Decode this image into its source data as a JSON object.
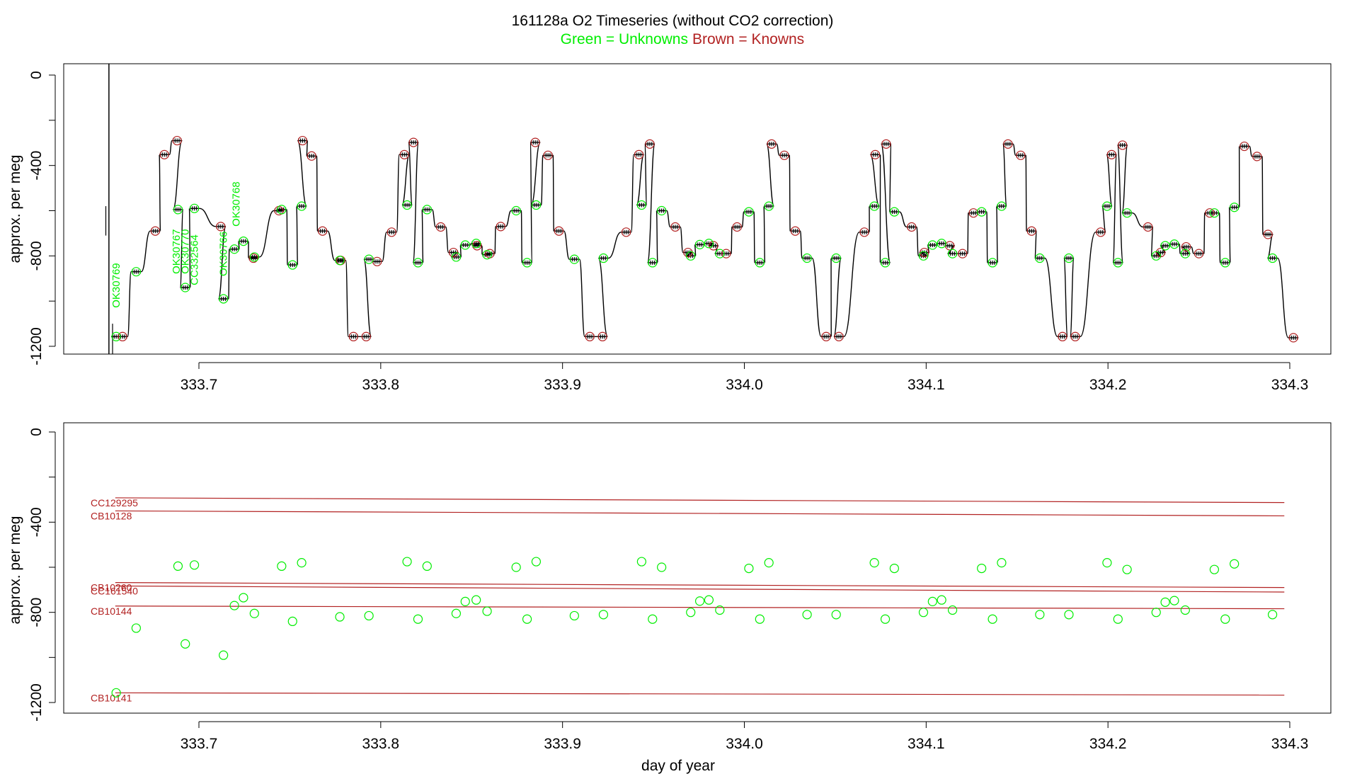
{
  "title": {
    "main": "161128a   O2 Timeseries (without CO2 correction)",
    "green_part": "Green = Unknowns",
    "brown_part": "Brown = Knowns"
  },
  "colors": {
    "green": "#00ee00",
    "brown": "#b22222",
    "ink": "#000000"
  },
  "chart_data": [
    {
      "type": "line",
      "title": "O2 Timeseries (without CO2 correction)",
      "xlabel": "",
      "ylabel": "approx. per meg",
      "xlim": [
        333.64,
        334.3
      ],
      "ylim": [
        -1250,
        50
      ],
      "xticks": [
        333.7,
        333.8,
        333.9,
        334.0,
        334.1,
        334.2,
        334.3
      ],
      "xtick_labels": [
        "333.7",
        "333.8",
        "333.9",
        "334.0",
        "334.1",
        "334.2",
        "334.3"
      ],
      "yticks": [
        0,
        -400,
        -800,
        -1200
      ],
      "ytick_labels": [
        "0",
        "-400",
        "-800",
        "-1200"
      ],
      "spike": {
        "x": 333.6505,
        "from": -1250,
        "to": 50
      },
      "cycle_offsets": [
        0,
        0.129,
        0.259,
        0.389
      ],
      "cycle_x_start": 333.652,
      "template": {
        "steps": [
          {
            "dx": 0.0,
            "dur": 0.006,
            "v": -1157,
            "kind": "known"
          },
          {
            "dx": 0.009,
            "dur": 0.006,
            "v": -870,
            "kind": "unknown"
          },
          {
            "dx": 0.018,
            "dur": 0.006,
            "v": -690,
            "kind": "known"
          },
          {
            "dx": 0.024,
            "dur": 0.006,
            "v": -352,
            "kind": "known"
          },
          {
            "dx": 0.03,
            "dur": 0.006,
            "v": -290,
            "kind": "known"
          },
          {
            "dx": 0.039,
            "dur": 0.005,
            "v": -595,
            "kind": "unknown"
          },
          {
            "dx": 0.046,
            "dur": 0.005,
            "v": -840,
            "kind": "unknown"
          },
          {
            "dx": 0.053,
            "dur": 0.006,
            "v": -810,
            "kind": "unknown"
          },
          {
            "dx": 0.06,
            "dur": 0.005,
            "v": -670,
            "kind": "known"
          },
          {
            "dx": 0.066,
            "dur": 0.006,
            "v": -600,
            "kind": "unknown"
          },
          {
            "dx": 0.073,
            "dur": 0.005,
            "v": -840,
            "kind": "unknown"
          },
          {
            "dx": 0.08,
            "dur": 0.005,
            "v": -583,
            "kind": "unknown"
          }
        ],
        "connector_dx": 0.0
      },
      "knowns_points": [
        [
          333.658,
          -1157
        ],
        [
          333.676,
          -690
        ],
        [
          333.681,
          -352
        ],
        [
          333.688,
          -290
        ],
        [
          333.712,
          -670
        ],
        [
          333.73,
          -810
        ],
        [
          333.744,
          -600
        ],
        [
          333.757,
          -290
        ],
        [
          333.762,
          -358
        ],
        [
          333.768,
          -690
        ],
        [
          333.778,
          -820
        ],
        [
          333.785,
          -1157
        ],
        [
          333.792,
          -1157
        ],
        [
          333.798,
          -825
        ],
        [
          333.806,
          -695
        ],
        [
          333.813,
          -352
        ],
        [
          333.818,
          -298
        ],
        [
          333.833,
          -672
        ],
        [
          333.84,
          -785
        ],
        [
          333.853,
          -755
        ],
        [
          333.86,
          -790
        ],
        [
          333.866,
          -670
        ],
        [
          333.885,
          -298
        ],
        [
          333.892,
          -355
        ],
        [
          333.898,
          -690
        ],
        [
          333.915,
          -1157
        ],
        [
          333.922,
          -1157
        ],
        [
          333.935,
          -695
        ],
        [
          333.942,
          -352
        ],
        [
          333.948,
          -305
        ],
        [
          333.962,
          -672
        ],
        [
          333.969,
          -785
        ],
        [
          333.983,
          -755
        ],
        [
          333.99,
          -790
        ],
        [
          333.996,
          -672
        ],
        [
          334.015,
          -305
        ],
        [
          334.022,
          -355
        ],
        [
          334.028,
          -690
        ],
        [
          334.045,
          -1157
        ],
        [
          334.052,
          -1157
        ],
        [
          334.066,
          -695
        ],
        [
          334.072,
          -352
        ],
        [
          334.078,
          -305
        ],
        [
          334.092,
          -672
        ],
        [
          334.099,
          -785
        ],
        [
          334.113,
          -755
        ],
        [
          334.12,
          -790
        ],
        [
          334.126,
          -610
        ],
        [
          334.145,
          -305
        ],
        [
          334.152,
          -355
        ],
        [
          334.158,
          -690
        ],
        [
          334.175,
          -1157
        ],
        [
          334.182,
          -1157
        ],
        [
          334.196,
          -695
        ],
        [
          334.202,
          -352
        ],
        [
          334.208,
          -310
        ],
        [
          334.222,
          -672
        ],
        [
          334.229,
          -785
        ],
        [
          334.243,
          -760
        ],
        [
          334.25,
          -790
        ],
        [
          334.256,
          -610
        ],
        [
          334.275,
          -315
        ],
        [
          334.282,
          -360
        ],
        [
          334.288,
          -705
        ],
        [
          334.302,
          -1162
        ]
      ],
      "unknowns_points": [
        [
          333.6545,
          -1157
        ],
        [
          333.6655,
          -870
        ],
        [
          333.6885,
          -595
        ],
        [
          333.6925,
          -940
        ],
        [
          333.6975,
          -590
        ],
        [
          333.7135,
          -990
        ],
        [
          333.7195,
          -770
        ],
        [
          333.7245,
          -735
        ],
        [
          333.7305,
          -805
        ],
        [
          333.7455,
          -595
        ],
        [
          333.7515,
          -840
        ],
        [
          333.7565,
          -580
        ],
        [
          333.7775,
          -820
        ],
        [
          333.7935,
          -815
        ],
        [
          333.8145,
          -575
        ],
        [
          333.8205,
          -830
        ],
        [
          333.8255,
          -595
        ],
        [
          333.8415,
          -805
        ],
        [
          333.8465,
          -752
        ],
        [
          333.8525,
          -745
        ],
        [
          333.8585,
          -795
        ],
        [
          333.8745,
          -600
        ],
        [
          333.8805,
          -830
        ],
        [
          333.8855,
          -575
        ],
        [
          333.9065,
          -815
        ],
        [
          333.9225,
          -810
        ],
        [
          333.9435,
          -575
        ],
        [
          333.9495,
          -830
        ],
        [
          333.9545,
          -600
        ],
        [
          333.9705,
          -800
        ],
        [
          333.9755,
          -750
        ],
        [
          333.9805,
          -745
        ],
        [
          333.9865,
          -790
        ],
        [
          334.0025,
          -605
        ],
        [
          334.0085,
          -830
        ],
        [
          334.0135,
          -580
        ],
        [
          334.0345,
          -810
        ],
        [
          334.0505,
          -810
        ],
        [
          334.0715,
          -580
        ],
        [
          334.0775,
          -830
        ],
        [
          334.0825,
          -605
        ],
        [
          334.0985,
          -800
        ],
        [
          334.1035,
          -752
        ],
        [
          334.1085,
          -745
        ],
        [
          334.1145,
          -790
        ],
        [
          334.1305,
          -605
        ],
        [
          334.1365,
          -830
        ],
        [
          334.1415,
          -580
        ],
        [
          334.1625,
          -810
        ],
        [
          334.1785,
          -810
        ],
        [
          334.1995,
          -580
        ],
        [
          334.2055,
          -830
        ],
        [
          334.2105,
          -610
        ],
        [
          334.2265,
          -800
        ],
        [
          334.2315,
          -755
        ],
        [
          334.2365,
          -748
        ],
        [
          334.2425,
          -790
        ],
        [
          334.2585,
          -610
        ],
        [
          334.2645,
          -830
        ],
        [
          334.2695,
          -585
        ],
        [
          334.2905,
          -810
        ]
      ],
      "annotations": [
        {
          "text": "OK30769",
          "x": 333.6545,
          "y": -1030
        },
        {
          "text": "OK30767",
          "x": 333.6875,
          "y": -880
        },
        {
          "text": "OK30770",
          "x": 333.6925,
          "y": -880
        },
        {
          "text": "CC332564",
          "x": 333.6975,
          "y": -930
        },
        {
          "text": "OK30766",
          "x": 333.7135,
          "y": -890
        },
        {
          "text": "OK30768",
          "x": 333.7205,
          "y": -670
        }
      ]
    },
    {
      "type": "scatter",
      "xlabel": "day of year",
      "ylabel": "approx. per meg",
      "xlim": [
        333.64,
        334.3
      ],
      "ylim": [
        -1250,
        50
      ],
      "xticks": [
        333.7,
        333.8,
        333.9,
        334.0,
        334.1,
        334.2,
        334.3
      ],
      "xtick_labels": [
        "333.7",
        "333.8",
        "333.9",
        "334.0",
        "334.1",
        "334.2",
        "334.3"
      ],
      "yticks": [
        0,
        -400,
        -800,
        -1200
      ],
      "ytick_labels": [
        "0",
        "-400",
        "-800",
        "-1200"
      ],
      "reference_lines": [
        {
          "name": "CC129295",
          "x0": 333.654,
          "y0": -292,
          "x1": 334.297,
          "y1": -313
        },
        {
          "name": "CB10128",
          "x0": 333.654,
          "y0": -350,
          "x1": 334.297,
          "y1": -372
        },
        {
          "name": "CB10260",
          "x0": 333.654,
          "y0": -668,
          "x1": 334.297,
          "y1": -690
        },
        {
          "name": "CC161540",
          "x0": 333.654,
          "y0": -683,
          "x1": 334.297,
          "y1": -710
        },
        {
          "name": "CB10144",
          "x0": 333.654,
          "y0": -772,
          "x1": 334.297,
          "y1": -784
        },
        {
          "name": "CB10141",
          "x0": 333.654,
          "y0": -1157,
          "x1": 334.297,
          "y1": -1167
        }
      ],
      "unknowns_ref": "same as chart 1 unknowns_points"
    }
  ]
}
